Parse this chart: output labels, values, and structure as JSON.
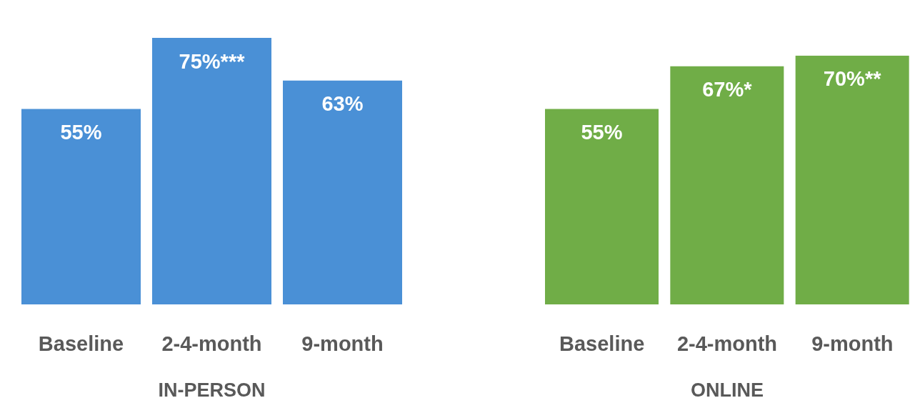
{
  "chart_data": [
    {
      "type": "bar",
      "xlabel": "IN-PERSON",
      "categories": [
        "Baseline",
        "2-4-month",
        "9-month"
      ],
      "values": [
        55,
        75,
        63
      ],
      "value_labels": [
        "55%",
        "75%***",
        "63%"
      ],
      "color": "#4a90d6",
      "legend": false,
      "grid": false
    },
    {
      "type": "bar",
      "xlabel": "ONLINE",
      "categories": [
        "Baseline",
        "2-4-month",
        "9-month"
      ],
      "values": [
        55,
        67,
        70
      ],
      "value_labels": [
        "55%",
        "67%*",
        "70%**"
      ],
      "color": "#70ad47",
      "legend": false,
      "grid": false
    }
  ]
}
